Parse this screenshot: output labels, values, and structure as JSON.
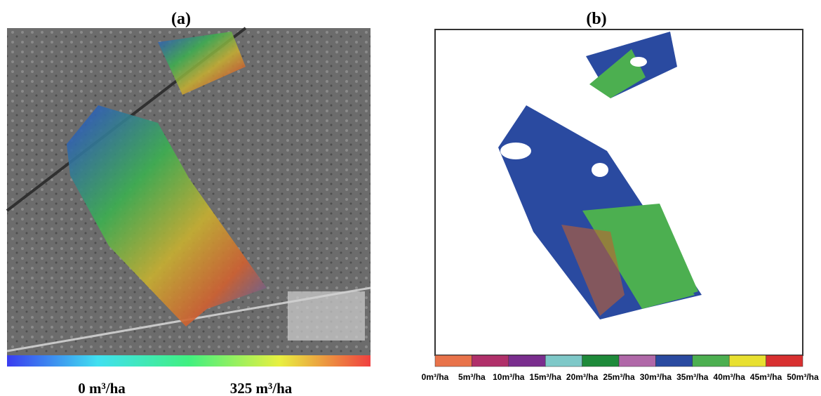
{
  "panels": [
    {
      "label": "(a)",
      "colorbar": {
        "min_label": "0 m³/ha",
        "max_label": "325 m³/ha",
        "colors": [
          "#3a3cf0",
          "#40e0f0",
          "#40f080",
          "#e8f040",
          "#f04040"
        ]
      }
    },
    {
      "label": "(b)",
      "legend": [
        {
          "label": "0m³/ha",
          "color": "#e8734a"
        },
        {
          "label": "5m³/ha",
          "color": "#b0306a"
        },
        {
          "label": "10m³/ha",
          "color": "#7a2e8e"
        },
        {
          "label": "15m³/ha",
          "color": "#7ec8c8"
        },
        {
          "label": "20m³/ha",
          "color": "#1e8a3a"
        },
        {
          "label": "25m³/ha",
          "color": "#b068a8"
        },
        {
          "label": "30m³/ha",
          "color": "#2a4aa0"
        },
        {
          "label": "35m³/ha",
          "color": "#4caf50"
        },
        {
          "label": "40m³/ha",
          "color": "#e8e030"
        },
        {
          "label": "45m³/ha",
          "color": "#d83030"
        },
        {
          "label": "50m³/ha"
        }
      ]
    }
  ]
}
